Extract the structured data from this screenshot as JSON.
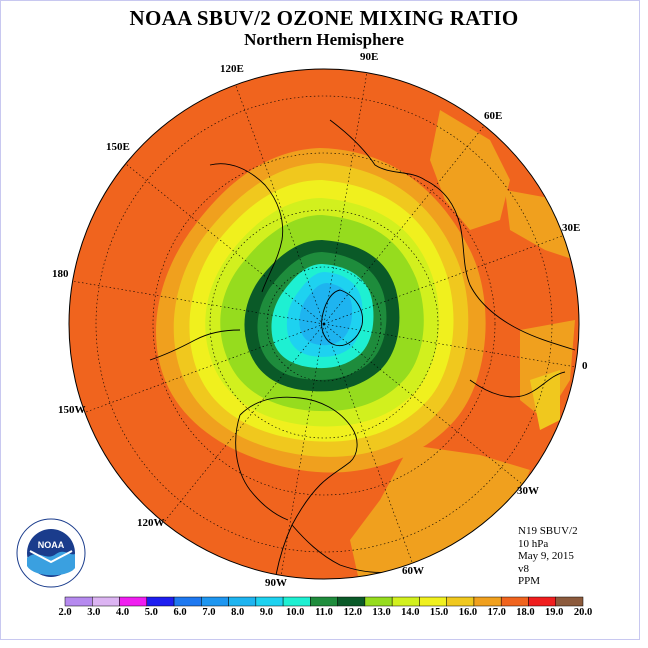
{
  "title": "NOAA SBUV/2 OZONE MIXING RATIO",
  "subtitle": "Northern Hemisphere",
  "longitude_labels": {
    "e90": "90E",
    "e60": "60E",
    "e30": "30E",
    "zero": "0",
    "w30": "30W",
    "w60": "60W",
    "w90": "90W",
    "w120": "120W",
    "w150": "150W",
    "d180": "180",
    "e150": "150E",
    "e120": "120E"
  },
  "info": {
    "satellite": "N19 SBUV/2",
    "level": "10 hPa",
    "date": "May 9, 2015",
    "version": "v8",
    "units": "PPM"
  },
  "logo": {
    "text": "NOAA",
    "icon": "noaa-logo"
  },
  "colorbar": {
    "labels": [
      "2.0",
      "3.0",
      "4.0",
      "5.0",
      "6.0",
      "7.0",
      "8.0",
      "9.0",
      "10.0",
      "11.0",
      "12.0",
      "13.0",
      "14.0",
      "15.0",
      "16.0",
      "17.0",
      "18.0",
      "19.0",
      "20.0"
    ],
    "colors": [
      "#b68aef",
      "#dcb4f2",
      "#f01ef0",
      "#1e1ef0",
      "#1e78f0",
      "#1e96f0",
      "#1eb4f0",
      "#1ed2f0",
      "#1ef0d2",
      "#1e8c3c",
      "#0a5a28",
      "#96dc1e",
      "#d2f01e",
      "#f0f01e",
      "#f0c81e",
      "#f0a01e",
      "#f0641e",
      "#f01e1e",
      "#8c5a3c"
    ]
  },
  "colors": {
    "background_field": "#f0641e",
    "ring_17": "#f0a01e",
    "ring_16": "#f0c81e",
    "ring_15": "#f0f01e",
    "ring_14": "#d2f01e",
    "ring_13": "#96dc1e",
    "ring_12": "#0a5a28",
    "ring_11": "#1e8c3c",
    "core_10": "#1ef0d2",
    "core_9": "#1ed2f0",
    "core_8": "#1eb4f0"
  }
}
